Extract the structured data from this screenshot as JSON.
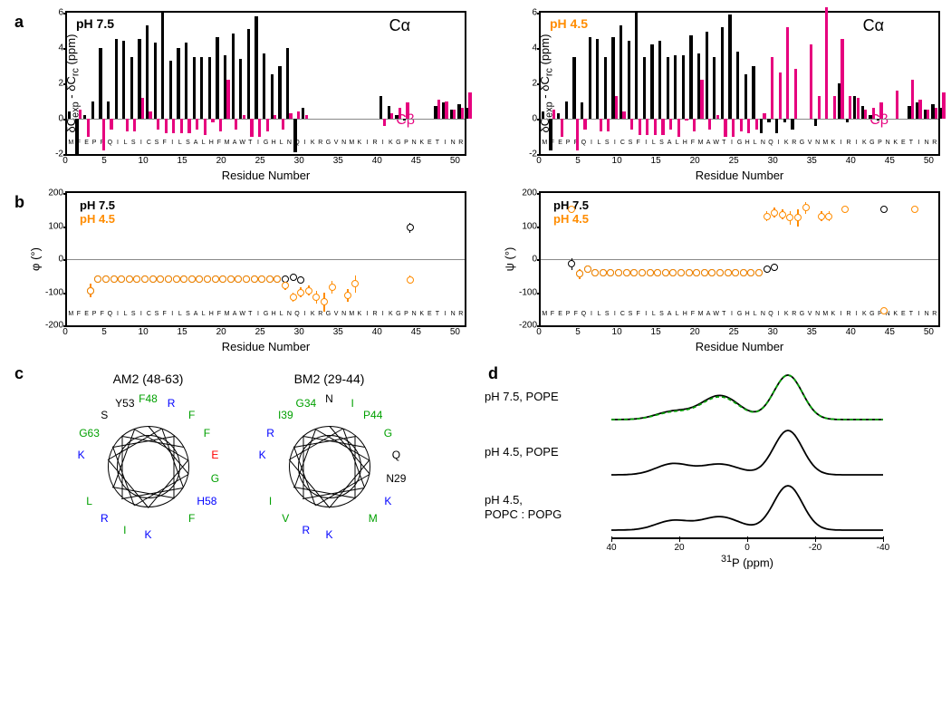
{
  "figure": {
    "panel_a": {
      "label": "a",
      "left": {
        "title": "pH 7.5",
        "title_color": "#000000",
        "ca_label": "Cα",
        "cb_label": "Cβ",
        "cb_color": "#e6007e",
        "ylabel": "δC_exp - δC_rc (ppm)",
        "xlabel": "Residue Number",
        "ylim": [
          -2,
          6
        ],
        "yticks": [
          -2,
          0,
          2,
          4,
          6
        ],
        "sequence": "MFEPFQILSICSFILSALHFMAWTIGHLNQIKRGVNMKIRIKGPNKETINR",
        "xticks": [
          0,
          5,
          10,
          15,
          20,
          25,
          30,
          35,
          40,
          45,
          50
        ],
        "bar_ca_color": "#000000",
        "bar_cb_color": "#e6007e",
        "ca": [
          0.4,
          -2.0,
          0.2,
          1.0,
          4.0,
          1.0,
          4.5,
          4.4,
          3.5,
          4.5,
          5.3,
          4.3,
          6.0,
          3.3,
          4.0,
          4.3,
          3.5,
          3.5,
          3.5,
          4.6,
          3.6,
          4.8,
          3.4,
          5.1,
          5.8,
          3.7,
          2.5,
          3.0,
          4.0,
          -1.9,
          0.6,
          null,
          null,
          null,
          null,
          null,
          null,
          null,
          null,
          null,
          1.3,
          0.7,
          0.2,
          -0.1,
          null,
          null,
          null,
          0.7,
          0.9,
          0.5,
          0.8,
          0.6
        ],
        "cb": [
          null,
          0.5,
          -1.0,
          null,
          -1.8,
          -0.6,
          0.0,
          -0.7,
          -0.7,
          1.2,
          0.4,
          -0.6,
          -0.8,
          -0.8,
          -0.8,
          -0.8,
          -0.6,
          -0.9,
          -0.2,
          -0.7,
          2.2,
          -0.6,
          0.2,
          -1.0,
          -1.0,
          -0.7,
          0.2,
          -0.6,
          0.3,
          0.4,
          0.2,
          null,
          null,
          null,
          null,
          null,
          null,
          null,
          null,
          null,
          -0.4,
          0.3,
          0.6,
          0.9,
          null,
          null,
          null,
          1.1,
          1.0,
          0.5,
          0.6,
          1.5
        ]
      },
      "right": {
        "title": "pH 4.5",
        "title_color": "#ff8c00",
        "ca_label": "Cα",
        "cb_label": "Cβ",
        "cb_color": "#e6007e",
        "ylabel": "δC_exp - δC_rc (ppm)",
        "xlabel": "Residue Number",
        "ylim": [
          -2,
          6
        ],
        "yticks": [
          -2,
          0,
          2,
          4,
          6
        ],
        "sequence": "MFEPFQILSICSFILSALHFMAWTIGHLNQIKRGVNMKIRIKGPNKETINR",
        "xticks": [
          0,
          5,
          10,
          15,
          20,
          25,
          30,
          35,
          40,
          45,
          50
        ],
        "bar_ca_color": "#000000",
        "bar_cb_color": "#e6007e",
        "ca": [
          0.4,
          -1.8,
          0.3,
          1.0,
          3.5,
          0.9,
          4.6,
          4.5,
          3.5,
          4.6,
          5.3,
          4.4,
          6.1,
          3.5,
          4.2,
          4.4,
          3.5,
          3.6,
          3.6,
          4.7,
          3.7,
          4.9,
          3.5,
          5.2,
          5.9,
          3.8,
          2.5,
          3.0,
          -0.8,
          -0.2,
          -0.8,
          -0.2,
          -0.6,
          null,
          null,
          -0.4,
          null,
          null,
          2.0,
          -0.2,
          1.3,
          0.7,
          0.2,
          -0.1,
          null,
          null,
          null,
          0.7,
          0.9,
          0.5,
          0.8,
          0.6
        ],
        "cb": [
          null,
          0.5,
          -1.0,
          null,
          -1.8,
          -0.6,
          0.0,
          -0.7,
          -0.7,
          1.3,
          0.4,
          -0.6,
          -0.9,
          -0.9,
          -0.9,
          -0.9,
          -0.6,
          -1.0,
          -0.1,
          -0.7,
          2.2,
          -0.6,
          0.2,
          -1.0,
          -1.0,
          -0.7,
          -0.8,
          -0.6,
          0.3,
          3.5,
          2.6,
          5.2,
          2.8,
          null,
          4.2,
          1.3,
          6.3,
          1.3,
          4.5,
          1.3,
          1.2,
          0.5,
          0.6,
          0.9,
          null,
          1.6,
          null,
          2.2,
          1.1,
          0.5,
          0.6,
          1.5
        ]
      }
    },
    "panel_b": {
      "label": "b",
      "ylabel_left": "φ (°)",
      "ylabel_right": "ψ (°)",
      "xlabel": "Residue Number",
      "ylim": [
        -200,
        200
      ],
      "yticks": [
        -200,
        -100,
        0,
        100,
        200
      ],
      "sequence": "MFEPFQILSICSFILSALHFMAWTIGHLNQIKRGVNMKIRIKGPNKETINR",
      "xticks": [
        0,
        5,
        10,
        15,
        20,
        25,
        30,
        35,
        40,
        45,
        50
      ],
      "legend": {
        "ph75": "pH 7.5",
        "ph75_color": "#000000",
        "ph45": "pH 4.5",
        "ph45_color": "#ff8c00"
      },
      "phi_75": {
        "x": [
          3,
          4,
          5,
          6,
          7,
          8,
          9,
          10,
          11,
          12,
          13,
          14,
          15,
          16,
          17,
          18,
          19,
          20,
          21,
          22,
          23,
          24,
          25,
          26,
          27,
          28,
          29,
          30,
          44
        ],
        "y": [
          -95,
          -60,
          -60,
          -60,
          -60,
          -60,
          -60,
          -60,
          -60,
          -60,
          -60,
          -60,
          -60,
          -60,
          -60,
          -60,
          -60,
          -60,
          -60,
          -60,
          -60,
          -60,
          -60,
          -60,
          -60,
          -60,
          -55,
          -62,
          95
        ],
        "err": [
          20,
          8,
          8,
          8,
          8,
          8,
          8,
          8,
          8,
          8,
          8,
          8,
          8,
          8,
          8,
          8,
          8,
          8,
          8,
          8,
          8,
          8,
          8,
          8,
          8,
          8,
          10,
          10,
          15
        ]
      },
      "phi_45": {
        "x": [
          3,
          4,
          5,
          6,
          7,
          8,
          9,
          10,
          11,
          12,
          13,
          14,
          15,
          16,
          17,
          18,
          19,
          20,
          21,
          22,
          23,
          24,
          25,
          26,
          27,
          28,
          29,
          30,
          31,
          32,
          33,
          34,
          36,
          37,
          44
        ],
        "y": [
          -95,
          -60,
          -60,
          -60,
          -60,
          -60,
          -60,
          -60,
          -60,
          -60,
          -60,
          -60,
          -60,
          -60,
          -60,
          -60,
          -60,
          -60,
          -60,
          -60,
          -60,
          -60,
          -60,
          -60,
          -60,
          -80,
          -115,
          -100,
          -95,
          -115,
          -130,
          -85,
          -110,
          -75,
          -62
        ],
        "err": [
          20,
          8,
          8,
          8,
          8,
          8,
          8,
          8,
          8,
          8,
          8,
          8,
          8,
          8,
          8,
          8,
          8,
          8,
          8,
          8,
          8,
          8,
          8,
          8,
          8,
          12,
          15,
          14,
          15,
          18,
          30,
          20,
          20,
          25,
          12
        ]
      },
      "psi_75": {
        "x": [
          4,
          5,
          6,
          7,
          8,
          9,
          10,
          11,
          12,
          13,
          14,
          15,
          16,
          17,
          18,
          19,
          20,
          21,
          22,
          23,
          24,
          25,
          26,
          27,
          28,
          29,
          30,
          44
        ],
        "y": [
          -15,
          -45,
          -30,
          -40,
          -40,
          -40,
          -40,
          -40,
          -40,
          -40,
          -40,
          -40,
          -40,
          -40,
          -40,
          -40,
          -40,
          -40,
          -40,
          -40,
          -40,
          -40,
          -40,
          -40,
          -40,
          -30,
          -25,
          150
        ],
        "err": [
          18,
          15,
          12,
          8,
          8,
          8,
          8,
          8,
          8,
          8,
          8,
          8,
          8,
          8,
          8,
          8,
          8,
          8,
          8,
          8,
          8,
          8,
          8,
          8,
          8,
          10,
          10,
          8
        ]
      },
      "psi_45": {
        "x": [
          4,
          5,
          6,
          7,
          8,
          9,
          10,
          11,
          12,
          13,
          14,
          15,
          16,
          17,
          18,
          19,
          20,
          21,
          22,
          23,
          24,
          25,
          26,
          27,
          28,
          29,
          30,
          31,
          32,
          33,
          34,
          36,
          37,
          39,
          44,
          48
        ],
        "y": [
          150,
          -45,
          -30,
          -40,
          -40,
          -40,
          -40,
          -40,
          -40,
          -40,
          -40,
          -40,
          -40,
          -40,
          -40,
          -40,
          -40,
          -40,
          -40,
          -40,
          -40,
          -40,
          -40,
          -40,
          -40,
          130,
          140,
          135,
          125,
          125,
          155,
          130,
          130,
          150,
          -155,
          150
        ],
        "err": [
          10,
          15,
          12,
          8,
          8,
          8,
          8,
          8,
          8,
          8,
          8,
          8,
          8,
          8,
          8,
          8,
          8,
          8,
          8,
          8,
          8,
          8,
          8,
          8,
          8,
          15,
          15,
          15,
          20,
          25,
          18,
          15,
          15,
          10,
          8,
          8
        ]
      }
    },
    "panel_c": {
      "label": "c",
      "wheels": [
        {
          "title": "AM2 (48-63)",
          "labels": [
            {
              "t": "F48",
              "c": "#00a000"
            },
            {
              "t": "G",
              "c": "#00a000"
            },
            {
              "t": "I",
              "c": "#00a000"
            },
            {
              "t": "G63",
              "c": "#00a000"
            },
            {
              "t": "F",
              "c": "#00a000"
            },
            {
              "t": "F",
              "c": "#00a000"
            },
            {
              "t": "L",
              "c": "#00a000"
            },
            {
              "t": "Y53",
              "c": "#000000"
            },
            {
              "t": "E",
              "c": "#ff0000"
            },
            {
              "t": "K",
              "c": "#0000ff"
            },
            {
              "t": "K",
              "c": "#0000ff"
            },
            {
              "t": "R",
              "c": "#0000ff"
            },
            {
              "t": "H58",
              "c": "#0000ff"
            },
            {
              "t": "R",
              "c": "#0000ff"
            },
            {
              "t": "S",
              "c": "#000000"
            },
            {
              "t": "F",
              "c": "#00a000"
            }
          ]
        },
        {
          "title": "BM2 (29-44)",
          "labels": [
            {
              "t": "N",
              "c": "#000000"
            },
            {
              "t": "N29",
              "c": "#000000"
            },
            {
              "t": "R",
              "c": "#0000ff"
            },
            {
              "t": "R",
              "c": "#0000ff"
            },
            {
              "t": "P44",
              "c": "#00a000"
            },
            {
              "t": "M",
              "c": "#00a000"
            },
            {
              "t": "I",
              "c": "#00a000"
            },
            {
              "t": "G34",
              "c": "#00a000"
            },
            {
              "t": "Q",
              "c": "#000000"
            },
            {
              "t": "K",
              "c": "#0000ff"
            },
            {
              "t": "K",
              "c": "#0000ff"
            },
            {
              "t": "I",
              "c": "#00a000"
            },
            {
              "t": "K",
              "c": "#0000ff"
            },
            {
              "t": "V",
              "c": "#00a000"
            },
            {
              "t": "I39",
              "c": "#00a000"
            },
            {
              "t": "G",
              "c": "#00a000"
            }
          ]
        }
      ]
    },
    "panel_d": {
      "label": "d",
      "xlabel": "³¹P (ppm)",
      "xlim": [
        40,
        -40
      ],
      "xticks": [
        40,
        20,
        0,
        -20,
        -40
      ],
      "spectra": [
        {
          "label_lines": [
            "pH 7.5, POPE"
          ],
          "dashed_color": "#00a000",
          "has_dashed": true
        },
        {
          "label_lines": [
            "pH 4.5, POPE"
          ],
          "has_dashed": false
        },
        {
          "label_lines": [
            "pH 4.5,",
            "POPC : POPG"
          ],
          "has_dashed": false
        }
      ]
    }
  }
}
